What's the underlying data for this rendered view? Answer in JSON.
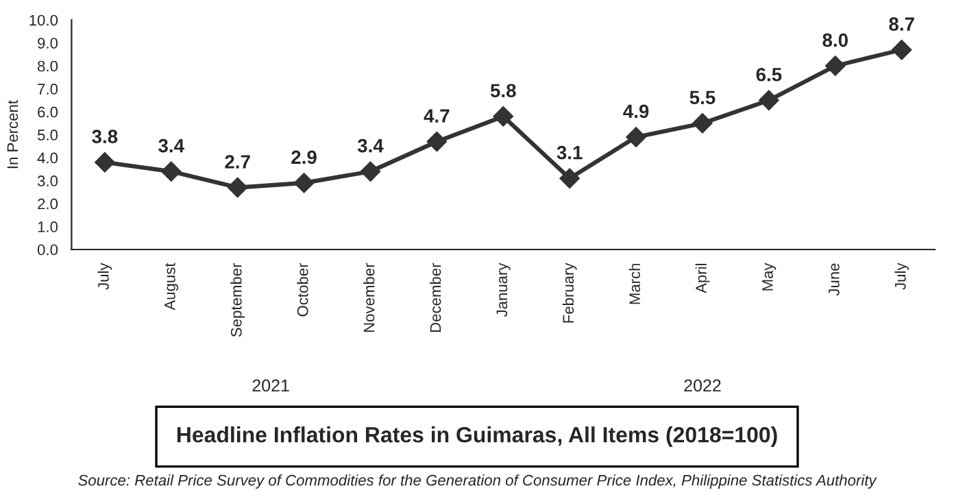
{
  "chart_data": {
    "type": "line",
    "title": "Headline Inflation Rates in Guimaras, All Items (2018=100)",
    "ylabel": "In Percent",
    "categories": [
      "July",
      "August",
      "September",
      "October",
      "November",
      "December",
      "January",
      "February",
      "March",
      "April",
      "May",
      "June",
      "July"
    ],
    "series": [
      {
        "color": "#333333",
        "values": [
          3.8,
          3.4,
          2.7,
          2.9,
          3.4,
          4.7,
          5.8,
          3.1,
          4.9,
          5.5,
          6.5,
          8.0,
          8.7
        ],
        "value_labels": [
          "3.8",
          "3.4",
          "2.7",
          "2.9",
          "3.4",
          "4.7",
          "5.8",
          "3.1",
          "4.9",
          "5.5",
          "6.5",
          "8.0",
          "8.7"
        ]
      }
    ],
    "ylim": [
      0,
      10
    ],
    "yticks": [
      {
        "value": 0,
        "label": "0.0"
      },
      {
        "value": 1,
        "label": "1.0"
      },
      {
        "value": 2,
        "label": "2.0"
      },
      {
        "value": 3,
        "label": "3.0"
      },
      {
        "value": 4,
        "label": "4.0"
      },
      {
        "value": 5,
        "label": "5.0"
      },
      {
        "value": 6,
        "label": "6.0"
      },
      {
        "value": 7,
        "label": "7.0"
      },
      {
        "value": 8,
        "label": "8.0"
      },
      {
        "value": 9,
        "label": "9.0"
      },
      {
        "value": 10,
        "label": "10.0"
      }
    ],
    "marker": "diamond",
    "line_style": "solid",
    "grid": false,
    "annotations": [
      "2021",
      "2022",
      "Source: Retail Price Survey of Commodities for the Generation of Consumer Price Index, Philippine Statistics Authority"
    ]
  }
}
